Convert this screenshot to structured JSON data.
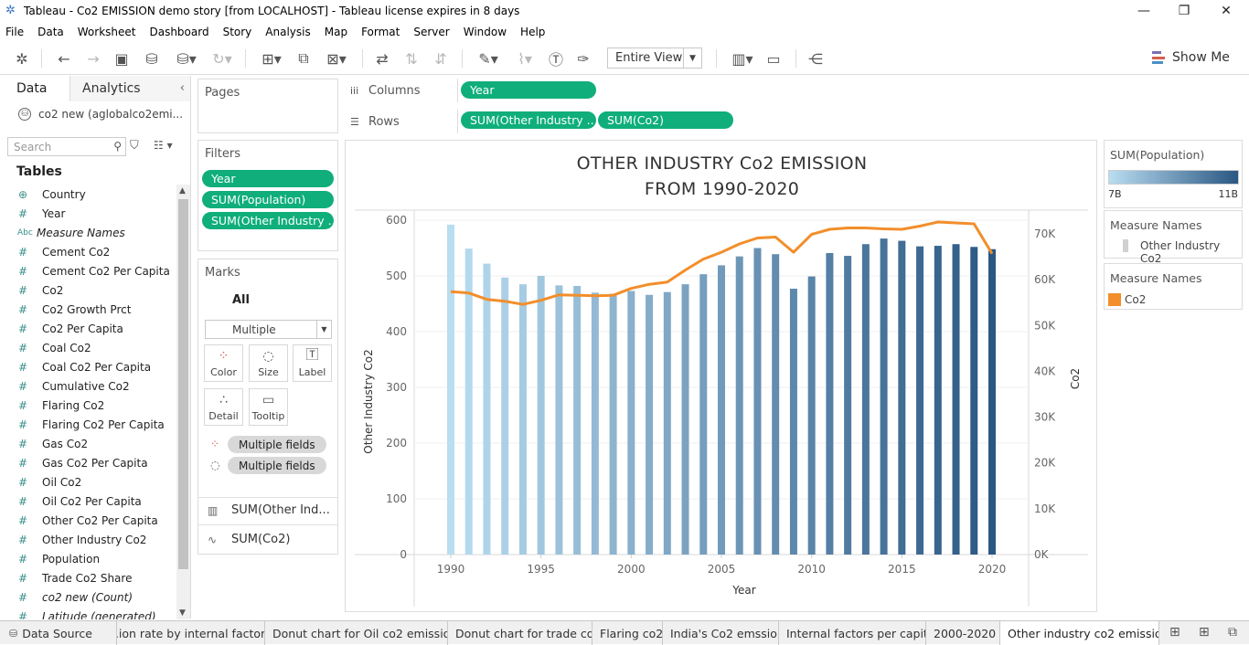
{
  "window": {
    "title": "Tableau - Co2 EMISSION demo story [from LOCALHOST] - Tableau license expires in 8 days"
  },
  "menu": [
    "File",
    "Data",
    "Worksheet",
    "Dashboard",
    "Story",
    "Analysis",
    "Map",
    "Format",
    "Server",
    "Window",
    "Help"
  ],
  "toolbar": {
    "view_mode": "Entire View",
    "show_me": "Show Me"
  },
  "data_pane": {
    "tab_data": "Data",
    "tab_analytics": "Analytics",
    "datasource": "co2 new (aglobalco2emi...",
    "search_placeholder": "Search",
    "tables_heading": "Tables",
    "fields": [
      {
        "icon": "globe-icon",
        "glyph": "⊕",
        "name": "Country",
        "italic": false
      },
      {
        "icon": "hash-icon",
        "glyph": "#",
        "name": "Year",
        "italic": false
      },
      {
        "icon": "abc-icon",
        "glyph": "Abc",
        "name": "Measure Names",
        "italic": true
      },
      {
        "icon": "hash-icon",
        "glyph": "#",
        "name": "Cement Co2",
        "italic": false
      },
      {
        "icon": "hash-icon",
        "glyph": "#",
        "name": "Cement Co2 Per Capita",
        "italic": false
      },
      {
        "icon": "hash-icon",
        "glyph": "#",
        "name": "Co2",
        "italic": false
      },
      {
        "icon": "hash-icon",
        "glyph": "#",
        "name": "Co2 Growth Prct",
        "italic": false
      },
      {
        "icon": "hash-icon",
        "glyph": "#",
        "name": "Co2 Per Capita",
        "italic": false
      },
      {
        "icon": "hash-icon",
        "glyph": "#",
        "name": "Coal Co2",
        "italic": false
      },
      {
        "icon": "hash-icon",
        "glyph": "#",
        "name": "Coal Co2 Per Capita",
        "italic": false
      },
      {
        "icon": "hash-icon",
        "glyph": "#",
        "name": "Cumulative Co2",
        "italic": false
      },
      {
        "icon": "hash-icon",
        "glyph": "#",
        "name": "Flaring Co2",
        "italic": false
      },
      {
        "icon": "hash-icon",
        "glyph": "#",
        "name": "Flaring Co2 Per Capita",
        "italic": false
      },
      {
        "icon": "hash-icon",
        "glyph": "#",
        "name": "Gas Co2",
        "italic": false
      },
      {
        "icon": "hash-icon",
        "glyph": "#",
        "name": "Gas Co2 Per Capita",
        "italic": false
      },
      {
        "icon": "hash-icon",
        "glyph": "#",
        "name": "Oil Co2",
        "italic": false
      },
      {
        "icon": "hash-icon",
        "glyph": "#",
        "name": "Oil Co2 Per Capita",
        "italic": false
      },
      {
        "icon": "hash-icon",
        "glyph": "#",
        "name": "Other Co2 Per Capita",
        "italic": false
      },
      {
        "icon": "hash-icon",
        "glyph": "#",
        "name": "Other Industry Co2",
        "italic": false
      },
      {
        "icon": "hash-icon",
        "glyph": "#",
        "name": "Population",
        "italic": false
      },
      {
        "icon": "hash-icon",
        "glyph": "#",
        "name": "Trade Co2 Share",
        "italic": false
      },
      {
        "icon": "hash-icon",
        "glyph": "#",
        "name": "co2 new (Count)",
        "italic": true
      },
      {
        "icon": "hash-icon",
        "glyph": "#",
        "name": "Latitude (generated)",
        "italic": true
      }
    ]
  },
  "pages": {
    "title": "Pages"
  },
  "filters": {
    "title": "Filters",
    "items": [
      "Year",
      "SUM(Population)",
      "SUM(Other Industry ..."
    ]
  },
  "marks": {
    "title": "Marks",
    "all": "All",
    "mark_type": "Multiple",
    "buttons": [
      "Color",
      "Size",
      "Label",
      "Detail",
      "Tooltip"
    ],
    "encodings": [
      "Multiple fields",
      "Multiple fields"
    ],
    "cards": [
      "SUM(Other Ind...",
      "SUM(Co2)"
    ]
  },
  "columns": {
    "label": "Columns",
    "pills": [
      "Year"
    ]
  },
  "rows": {
    "label": "Rows",
    "pills": [
      "SUM(Other Industry ..",
      "SUM(Co2)"
    ]
  },
  "legends": {
    "population": {
      "title": "SUM(Population)",
      "min": "7B",
      "max": "11B"
    },
    "measure_names_1": {
      "title": "Measure Names",
      "item": "Other Industry Co2"
    },
    "measure_names_2": {
      "title": "Measure Names",
      "item": "Co2"
    }
  },
  "colors": {
    "accent_pill": "#0fae7a",
    "line": "#f28e2b",
    "bar_light": "#b9ddf1",
    "bar_dark": "#2a5783"
  },
  "chart_data": {
    "type": "bar",
    "title": "OTHER INDUSTRY Co2 EMISSION",
    "subtitle": "FROM 1990-2020",
    "xlabel": "Year",
    "ylabel": "Other Industry Co2",
    "y2label": "Co2",
    "ylim": [
      0,
      620
    ],
    "y2lim": [
      0,
      77000
    ],
    "yticks": [
      0,
      100,
      200,
      300,
      400,
      500,
      600
    ],
    "y2ticks": [
      "0K",
      "10K",
      "20K",
      "30K",
      "40K",
      "50K",
      "60K",
      "70K"
    ],
    "xticks": [
      1990,
      1995,
      2000,
      2005,
      2010,
      2015,
      2020
    ],
    "x": [
      1990,
      1991,
      1992,
      1993,
      1994,
      1995,
      1996,
      1997,
      1998,
      1999,
      2000,
      2001,
      2002,
      2003,
      2004,
      2005,
      2006,
      2007,
      2008,
      2009,
      2010,
      2011,
      2012,
      2013,
      2014,
      2015,
      2016,
      2017,
      2018,
      2019,
      2020
    ],
    "series": [
      {
        "name": "Other Industry Co2",
        "type": "bar",
        "values": [
          592,
          549,
          522,
          497,
          485,
          500,
          483,
          482,
          470,
          468,
          473,
          466,
          471,
          485,
          503,
          519,
          535,
          550,
          539,
          477,
          499,
          541,
          536,
          557,
          567,
          563,
          553,
          554,
          557,
          552,
          548
        ]
      },
      {
        "name": "Co2",
        "type": "line",
        "values": [
          57400,
          57100,
          55700,
          55300,
          54600,
          55500,
          56700,
          56600,
          56500,
          56600,
          58100,
          59000,
          59500,
          62100,
          64500,
          66000,
          67800,
          69100,
          69300,
          66000,
          69900,
          71000,
          71300,
          71300,
          71100,
          71000,
          71700,
          72600,
          72400,
          72200,
          65700
        ]
      }
    ],
    "bar_color_by": "SUM(Population)"
  },
  "sheet_tabs": [
    "Data Source",
    "...ion rate by internal factors",
    "Donut chart for Oil co2 emission",
    "Donut chart for trade co2",
    "Flaring co2",
    "India's Co2 emssion",
    "Internal factors per capita",
    "2000-2020",
    "Other industry co2 emission"
  ]
}
